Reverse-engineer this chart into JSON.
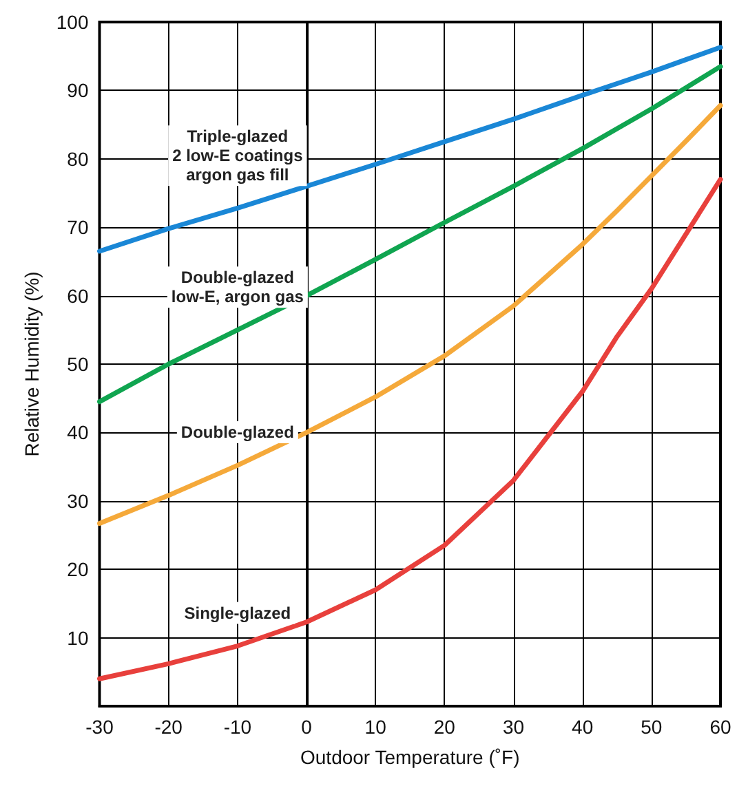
{
  "chart_data": {
    "type": "line",
    "xlabel": "Outdoor Temperature (˚F)",
    "ylabel": "Relative Humidity (%)",
    "x": [
      -30,
      -20,
      -10,
      0,
      10,
      20,
      30,
      40,
      45,
      50,
      55,
      60
    ],
    "series": [
      {
        "name": "Triple-glazed\n2 low-E coatings\nargon gas fill",
        "color": "#1a87d6",
        "values": [
          66.5,
          69.8,
          72.8,
          76,
          79.2,
          82.5,
          85.8,
          89.3,
          91,
          92.7,
          94.5,
          96.3
        ]
      },
      {
        "name": "Double-glazed\nlow-E, argon gas",
        "color": "#10a550",
        "values": [
          44.5,
          50,
          55,
          60,
          65.3,
          70.7,
          76,
          81.5,
          84.4,
          87.3,
          90.4,
          93.5
        ]
      },
      {
        "name": "Double-glazed",
        "color": "#f5a93a",
        "values": [
          26.7,
          30.8,
          35.2,
          40,
          45.2,
          51.2,
          58.5,
          67.5,
          72.4,
          77.5,
          82.6,
          87.8
        ]
      },
      {
        "name": "Single-glazed",
        "color": "#e8403c",
        "values": [
          4,
          6.2,
          8.8,
          12.3,
          17,
          23.5,
          33,
          46,
          54,
          61,
          69,
          77
        ]
      }
    ],
    "xlim": [
      -30,
      60
    ],
    "xticks": [
      -30,
      -20,
      -10,
      0,
      10,
      20,
      30,
      40,
      50,
      60
    ],
    "ylim": [
      0,
      100
    ],
    "yticks": [
      {
        "value": 0,
        "label": null
      },
      10,
      20,
      30,
      40,
      50,
      60,
      70,
      80,
      90,
      100
    ],
    "grid": true,
    "legend": false,
    "marker": "none",
    "line_style": "solid"
  }
}
